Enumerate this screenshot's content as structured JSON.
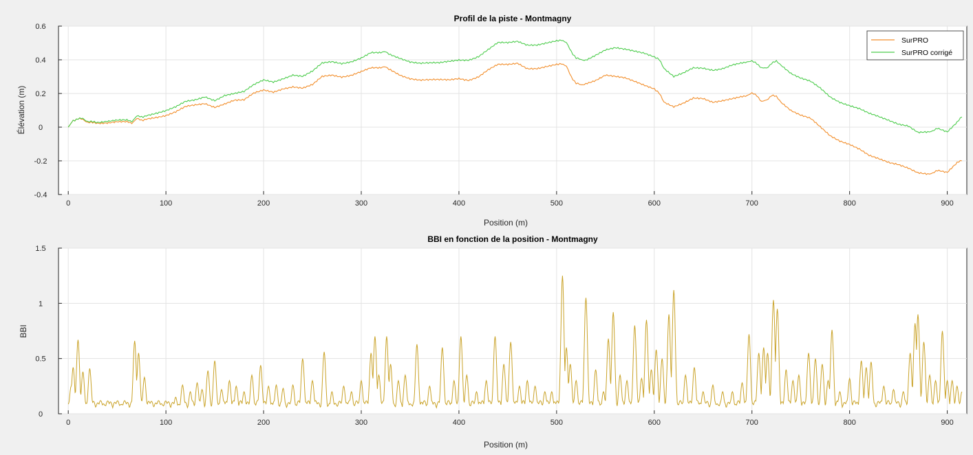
{
  "chart_data": [
    {
      "type": "line",
      "title": "Profil de la piste - Montmagny",
      "xlabel": "Position (m)",
      "ylabel": "Élévation (m)",
      "xlim": [
        -10,
        920
      ],
      "ylim": [
        -0.4,
        0.6
      ],
      "xticks": [
        "0",
        "100",
        "200",
        "300",
        "400",
        "500",
        "600",
        "700",
        "800",
        "900"
      ],
      "yticks": [
        "-0.4",
        "-0.2",
        "0",
        "0.2",
        "0.4",
        "0.6"
      ],
      "grid": true,
      "legend": "top-right",
      "series": [
        {
          "name": "SurPRO",
          "color": "#f28e2b",
          "x": [
            0,
            5,
            10,
            15,
            20,
            25,
            30,
            40,
            50,
            60,
            65,
            70,
            75,
            80,
            90,
            100,
            110,
            120,
            130,
            140,
            150,
            160,
            170,
            180,
            190,
            200,
            210,
            220,
            230,
            240,
            250,
            260,
            270,
            280,
            290,
            300,
            310,
            320,
            325,
            330,
            340,
            350,
            360,
            370,
            380,
            390,
            400,
            410,
            420,
            430,
            440,
            450,
            460,
            470,
            480,
            490,
            500,
            505,
            510,
            515,
            520,
            525,
            530,
            540,
            550,
            560,
            570,
            580,
            590,
            600,
            605,
            610,
            620,
            630,
            640,
            650,
            660,
            670,
            680,
            690,
            695,
            700,
            705,
            710,
            715,
            720,
            725,
            730,
            740,
            750,
            760,
            770,
            780,
            790,
            800,
            810,
            820,
            830,
            840,
            850,
            860,
            870,
            880,
            885,
            890,
            900,
            910,
            915
          ],
          "y": [
            0.0,
            0.04,
            0.05,
            0.045,
            0.03,
            0.025,
            0.025,
            0.025,
            0.03,
            0.03,
            0.025,
            0.05,
            0.04,
            0.05,
            0.06,
            0.07,
            0.09,
            0.12,
            0.13,
            0.14,
            0.12,
            0.14,
            0.16,
            0.16,
            0.2,
            0.22,
            0.21,
            0.23,
            0.24,
            0.23,
            0.25,
            0.3,
            0.31,
            0.3,
            0.31,
            0.33,
            0.35,
            0.35,
            0.36,
            0.34,
            0.31,
            0.29,
            0.28,
            0.28,
            0.28,
            0.28,
            0.29,
            0.28,
            0.3,
            0.34,
            0.37,
            0.37,
            0.38,
            0.35,
            0.35,
            0.36,
            0.37,
            0.38,
            0.36,
            0.3,
            0.26,
            0.25,
            0.26,
            0.28,
            0.31,
            0.3,
            0.29,
            0.27,
            0.25,
            0.23,
            0.2,
            0.15,
            0.12,
            0.14,
            0.17,
            0.17,
            0.15,
            0.16,
            0.17,
            0.18,
            0.19,
            0.2,
            0.19,
            0.15,
            0.16,
            0.19,
            0.18,
            0.15,
            0.1,
            0.07,
            0.05,
            0.0,
            -0.05,
            -0.08,
            -0.1,
            -0.13,
            -0.17,
            -0.19,
            -0.21,
            -0.22,
            -0.24,
            -0.27,
            -0.28,
            -0.27,
            -0.26,
            -0.27,
            -0.21,
            -0.2
          ]
        },
        {
          "name": "SurPRO corrigé",
          "color": "#4ccc4c",
          "x": [
            0,
            5,
            10,
            15,
            20,
            25,
            30,
            40,
            50,
            60,
            65,
            70,
            75,
            80,
            90,
            100,
            110,
            120,
            130,
            140,
            150,
            160,
            170,
            180,
            190,
            200,
            210,
            220,
            230,
            240,
            250,
            260,
            270,
            280,
            290,
            300,
            310,
            320,
            325,
            330,
            340,
            350,
            360,
            370,
            380,
            390,
            400,
            410,
            420,
            430,
            440,
            450,
            460,
            470,
            480,
            490,
            500,
            505,
            510,
            515,
            520,
            525,
            530,
            540,
            550,
            560,
            570,
            580,
            590,
            600,
            605,
            610,
            620,
            630,
            640,
            650,
            660,
            670,
            680,
            690,
            695,
            700,
            705,
            710,
            715,
            720,
            725,
            730,
            740,
            750,
            760,
            770,
            780,
            790,
            800,
            810,
            820,
            830,
            840,
            850,
            860,
            870,
            880,
            885,
            890,
            900,
            910,
            915
          ],
          "y": [
            0.0,
            0.04,
            0.05,
            0.05,
            0.035,
            0.03,
            0.03,
            0.035,
            0.04,
            0.04,
            0.035,
            0.065,
            0.06,
            0.07,
            0.085,
            0.1,
            0.12,
            0.15,
            0.16,
            0.18,
            0.16,
            0.19,
            0.2,
            0.21,
            0.25,
            0.28,
            0.27,
            0.29,
            0.31,
            0.3,
            0.33,
            0.38,
            0.39,
            0.38,
            0.39,
            0.41,
            0.44,
            0.44,
            0.45,
            0.43,
            0.41,
            0.39,
            0.38,
            0.38,
            0.38,
            0.39,
            0.4,
            0.4,
            0.42,
            0.46,
            0.5,
            0.5,
            0.51,
            0.49,
            0.49,
            0.5,
            0.51,
            0.52,
            0.5,
            0.45,
            0.41,
            0.4,
            0.4,
            0.43,
            0.46,
            0.47,
            0.46,
            0.45,
            0.44,
            0.42,
            0.4,
            0.35,
            0.3,
            0.32,
            0.35,
            0.35,
            0.34,
            0.35,
            0.37,
            0.38,
            0.39,
            0.39,
            0.38,
            0.35,
            0.35,
            0.38,
            0.39,
            0.37,
            0.32,
            0.29,
            0.27,
            0.23,
            0.18,
            0.15,
            0.13,
            0.11,
            0.08,
            0.06,
            0.04,
            0.02,
            0.01,
            -0.03,
            -0.03,
            -0.02,
            -0.01,
            -0.03,
            0.03,
            0.06
          ]
        }
      ]
    },
    {
      "type": "line",
      "title": "BBI en fonction de la position - Montmagny",
      "xlabel": "Position (m)",
      "ylabel": "BBI",
      "xlim": [
        -10,
        920
      ],
      "ylim": [
        0,
        1.5
      ],
      "xticks": [
        "0",
        "100",
        "200",
        "300",
        "400",
        "500",
        "600",
        "700",
        "800",
        "900"
      ],
      "yticks": [
        "0",
        "0.5",
        "1",
        "1.5"
      ],
      "grid": true,
      "series": [
        {
          "name": "",
          "color": "#c9a227",
          "peaks_x": [
            3,
            5,
            10,
            15,
            22,
            68,
            72,
            78,
            110,
            117,
            125,
            132,
            137,
            143,
            150,
            157,
            165,
            172,
            180,
            188,
            197,
            205,
            213,
            220,
            230,
            240,
            250,
            262,
            270,
            282,
            290,
            300,
            310,
            314,
            318,
            326,
            330,
            338,
            345,
            357,
            370,
            383,
            395,
            402,
            408,
            418,
            428,
            437,
            446,
            453,
            462,
            470,
            478,
            488,
            495,
            506,
            510,
            514,
            520,
            530,
            540,
            548,
            553,
            558,
            565,
            572,
            580,
            587,
            592,
            597,
            602,
            608,
            615,
            620,
            632,
            641,
            650,
            660,
            670,
            680,
            690,
            697,
            707,
            712,
            716,
            722,
            726,
            735,
            742,
            748,
            758,
            765,
            772,
            778,
            782,
            790,
            800,
            812,
            817,
            822,
            835,
            845,
            855,
            862,
            867,
            870,
            876,
            882,
            888,
            895,
            900,
            905,
            910,
            915
          ],
          "peaks_y": [
            0.25,
            0.42,
            0.67,
            0.38,
            0.41,
            0.66,
            0.55,
            0.33,
            0.15,
            0.26,
            0.2,
            0.28,
            0.22,
            0.39,
            0.48,
            0.22,
            0.3,
            0.25,
            0.2,
            0.35,
            0.44,
            0.25,
            0.26,
            0.23,
            0.26,
            0.5,
            0.3,
            0.56,
            0.2,
            0.25,
            0.2,
            0.3,
            0.55,
            0.7,
            0.35,
            0.7,
            0.45,
            0.3,
            0.35,
            0.63,
            0.25,
            0.6,
            0.3,
            0.7,
            0.35,
            0.2,
            0.3,
            0.7,
            0.45,
            0.65,
            0.25,
            0.3,
            0.25,
            0.2,
            0.2,
            1.25,
            0.6,
            0.45,
            0.3,
            1.05,
            0.4,
            0.2,
            0.68,
            0.92,
            0.35,
            0.3,
            0.8,
            0.32,
            0.85,
            0.4,
            0.58,
            0.5,
            0.9,
            1.12,
            0.35,
            0.42,
            0.2,
            0.26,
            0.2,
            0.2,
            0.28,
            0.72,
            0.55,
            0.6,
            0.55,
            1.03,
            0.95,
            0.4,
            0.3,
            0.35,
            0.55,
            0.5,
            0.45,
            0.3,
            0.76,
            0.2,
            0.32,
            0.48,
            0.42,
            0.47,
            0.25,
            0.22,
            0.2,
            0.55,
            0.82,
            0.9,
            0.65,
            0.35,
            0.3,
            0.75,
            0.3,
            0.3,
            0.25,
            0.2
          ]
        }
      ]
    }
  ]
}
